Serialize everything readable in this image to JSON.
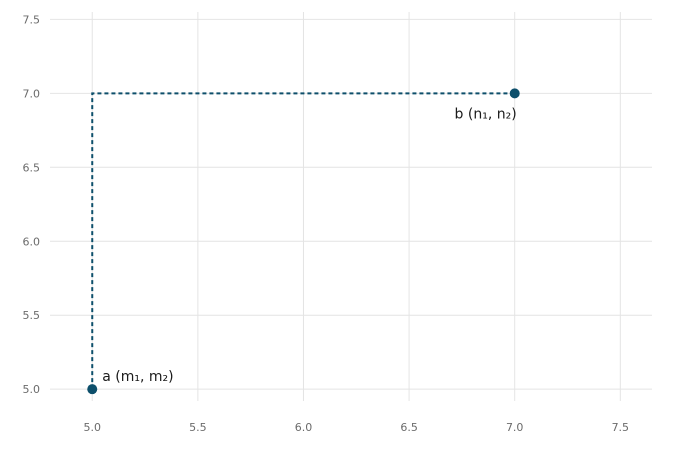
{
  "chart_data": {
    "type": "scatter",
    "title": "",
    "xlabel": "",
    "ylabel": "",
    "xlim": [
      4.8,
      7.65
    ],
    "ylim": [
      4.92,
      7.55
    ],
    "x_ticks": [
      5.0,
      5.5,
      6.0,
      6.5,
      7.0,
      7.5
    ],
    "y_ticks": [
      5.0,
      5.5,
      6.0,
      6.5,
      7.0,
      7.5
    ],
    "x_tick_labels": [
      "5.0",
      "5.5",
      "6.0",
      "6.5",
      "7.0",
      "7.5"
    ],
    "y_tick_labels": [
      "5.0",
      "5.5",
      "6.0",
      "6.5",
      "7.0",
      "7.5"
    ],
    "grid": true,
    "points": [
      {
        "id": "a",
        "x": 5.0,
        "y": 5.0,
        "label": "a (m₁, m₂)"
      },
      {
        "id": "b",
        "x": 7.0,
        "y": 7.0,
        "label": "b (n₁, n₂)"
      }
    ],
    "guide_path": [
      [
        5.0,
        5.0
      ],
      [
        5.0,
        7.0
      ],
      [
        7.0,
        7.0
      ]
    ],
    "colors": {
      "point": "#0d4f6b",
      "guide": "#0d4f6b",
      "grid": "#e4e4e4"
    }
  }
}
